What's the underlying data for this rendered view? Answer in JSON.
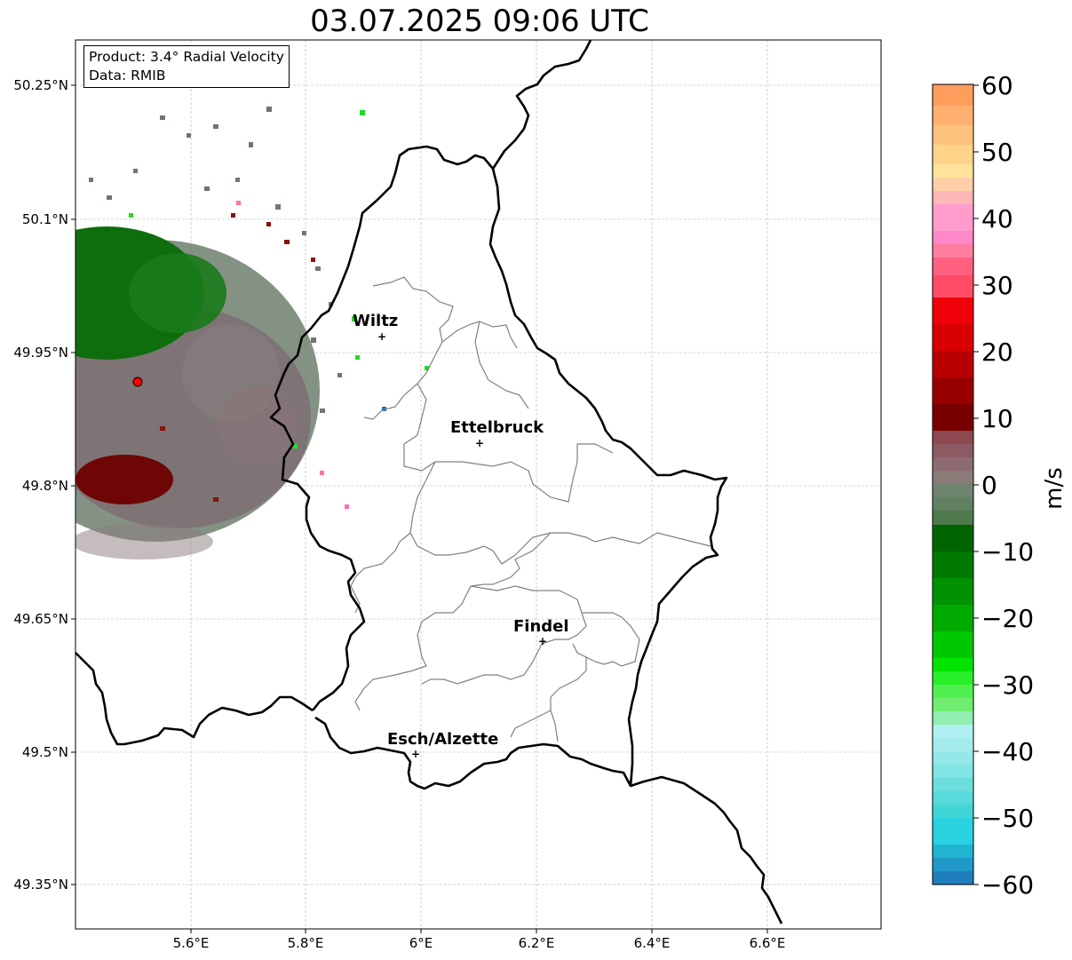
{
  "title": "03.07.2025 09:06 UTC",
  "info": {
    "product": "Product: 3.4° Radial Velocity",
    "data": "Data: RMIB"
  },
  "lat_labels": [
    "50.25°N",
    "50.1°N",
    "49.95°N",
    "49.8°N",
    "49.65°N",
    "49.5°N",
    "49.35°N"
  ],
  "lon_labels": [
    "5.6°E",
    "5.8°E",
    "6°E",
    "6.2°E",
    "6.4°E",
    "6.6°E"
  ],
  "cities": [
    {
      "name": "Wiltz"
    },
    {
      "name": "Ettelbruck"
    },
    {
      "name": "Findel"
    },
    {
      "name": "Esch/Alzette"
    }
  ],
  "colorbar": {
    "unit": "m/s",
    "tick_labels": [
      "60",
      "50",
      "40",
      "30",
      "20",
      "10",
      "0",
      "−10",
      "−20",
      "−30",
      "−40",
      "−50",
      "−60"
    ]
  },
  "colors": {
    "border_line": "#000000",
    "canton_line": "#808080",
    "radar_site": "#ff0000"
  }
}
